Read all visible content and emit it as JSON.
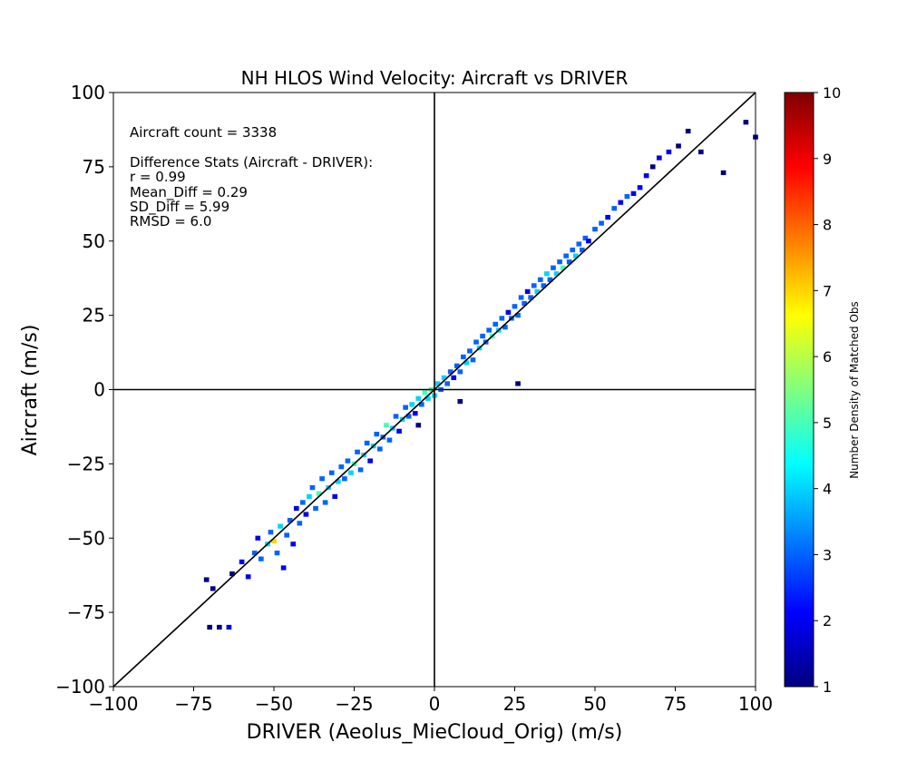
{
  "chart_data": {
    "type": "heatmap",
    "title": "NH HLOS Wind Velocity: Aircraft vs DRIVER",
    "xlabel": "DRIVER (Aeolus_MieCloud_Orig) (m/s)",
    "ylabel": "Aircraft (m/s)",
    "xlim": [
      -100,
      100
    ],
    "ylim": [
      -100,
      100
    ],
    "xticks": [
      -100,
      -75,
      -50,
      -25,
      0,
      25,
      50,
      75,
      100
    ],
    "yticks": [
      -100,
      -75,
      -50,
      -25,
      0,
      25,
      50,
      75,
      100
    ],
    "xtick_labels": [
      "−100",
      "−75",
      "−50",
      "−25",
      "0",
      "25",
      "50",
      "75",
      "100"
    ],
    "ytick_labels": [
      "−100",
      "−75",
      "−50",
      "−25",
      "0",
      "25",
      "50",
      "75",
      "100"
    ],
    "reference_lines": [
      "y = x",
      "x = 0",
      "y = 0"
    ],
    "colorbar": {
      "label": "Number Density of Matched Obs",
      "range": [
        1,
        10
      ],
      "ticks": [
        1,
        2,
        3,
        4,
        5,
        6,
        7,
        8,
        9,
        10
      ],
      "tick_labels": [
        "1",
        "2",
        "3",
        "4",
        "5",
        "6",
        "7",
        "8",
        "9",
        "10"
      ],
      "colormap": "jet"
    },
    "annotations": {
      "count": "Aircraft count = 3338",
      "stats_header": "Difference Stats (Aircraft - DRIVER):",
      "r": "r = 0.99",
      "mean_diff": "Mean_Diff = 0.29",
      "sd_diff": "SD_Diff = 5.99",
      "rmsd": "RMSD = 6.0"
    },
    "summary": {
      "count": 3338,
      "r": 0.99,
      "mean_diff": 0.29,
      "sd_diff": 5.99,
      "rmsd": 6.0
    },
    "colors": {
      "reference_line": "#000000",
      "jet": [
        "#00007f",
        "#0000ff",
        "#007fff",
        "#00ffff",
        "#7fff7f",
        "#ffff00",
        "#ff7f00",
        "#ff0000",
        "#7f0000"
      ]
    },
    "density_points": [
      {
        "x": -70,
        "y": -80,
        "d": 1
      },
      {
        "x": -67,
        "y": -80,
        "d": 1
      },
      {
        "x": -64,
        "y": -80,
        "d": 2
      },
      {
        "x": -71,
        "y": -64,
        "d": 1
      },
      {
        "x": -69,
        "y": -67,
        "d": 1
      },
      {
        "x": -63,
        "y": -62,
        "d": 1
      },
      {
        "x": -60,
        "y": -58,
        "d": 2
      },
      {
        "x": -58,
        "y": -63,
        "d": 2
      },
      {
        "x": -56,
        "y": -55,
        "d": 3
      },
      {
        "x": -55,
        "y": -50,
        "d": 2
      },
      {
        "x": -54,
        "y": -57,
        "d": 3
      },
      {
        "x": -52,
        "y": -52,
        "d": 4
      },
      {
        "x": -51,
        "y": -48,
        "d": 3
      },
      {
        "x": -50,
        "y": -51,
        "d": 7
      },
      {
        "x": -49,
        "y": -55,
        "d": 3
      },
      {
        "x": -48,
        "y": -46,
        "d": 4
      },
      {
        "x": -47,
        "y": -60,
        "d": 2
      },
      {
        "x": -46,
        "y": -49,
        "d": 3
      },
      {
        "x": -45,
        "y": -44,
        "d": 3
      },
      {
        "x": -44,
        "y": -52,
        "d": 2
      },
      {
        "x": -43,
        "y": -40,
        "d": 2
      },
      {
        "x": -42,
        "y": -45,
        "d": 3
      },
      {
        "x": -41,
        "y": -38,
        "d": 3
      },
      {
        "x": -40,
        "y": -42,
        "d": 2
      },
      {
        "x": -39,
        "y": -36,
        "d": 4
      },
      {
        "x": -38,
        "y": -33,
        "d": 3
      },
      {
        "x": -37,
        "y": -40,
        "d": 3
      },
      {
        "x": -36,
        "y": -35,
        "d": 5
      },
      {
        "x": -35,
        "y": -30,
        "d": 3
      },
      {
        "x": -34,
        "y": -38,
        "d": 3
      },
      {
        "x": -33,
        "y": -33,
        "d": 4
      },
      {
        "x": -32,
        "y": -28,
        "d": 3
      },
      {
        "x": -31,
        "y": -36,
        "d": 2
      },
      {
        "x": -30,
        "y": -31,
        "d": 4
      },
      {
        "x": -29,
        "y": -26,
        "d": 3
      },
      {
        "x": -28,
        "y": -30,
        "d": 3
      },
      {
        "x": -27,
        "y": -24,
        "d": 3
      },
      {
        "x": -26,
        "y": -28,
        "d": 4
      },
      {
        "x": -25,
        "y": -25,
        "d": 5
      },
      {
        "x": -24,
        "y": -21,
        "d": 3
      },
      {
        "x": -23,
        "y": -27,
        "d": 3
      },
      {
        "x": -22,
        "y": -22,
        "d": 4
      },
      {
        "x": -21,
        "y": -18,
        "d": 3
      },
      {
        "x": -20,
        "y": -24,
        "d": 2
      },
      {
        "x": -19,
        "y": -19,
        "d": 4
      },
      {
        "x": -18,
        "y": -15,
        "d": 3
      },
      {
        "x": -17,
        "y": -20,
        "d": 3
      },
      {
        "x": -16,
        "y": -16,
        "d": 3
      },
      {
        "x": -15,
        "y": -12,
        "d": 5
      },
      {
        "x": -14,
        "y": -17,
        "d": 3
      },
      {
        "x": -13,
        "y": -13,
        "d": 4
      },
      {
        "x": -12,
        "y": -9,
        "d": 3
      },
      {
        "x": -11,
        "y": -14,
        "d": 2
      },
      {
        "x": -10,
        "y": -10,
        "d": 4
      },
      {
        "x": -9,
        "y": -6,
        "d": 3
      },
      {
        "x": -8,
        "y": -9,
        "d": 3
      },
      {
        "x": -7,
        "y": -5,
        "d": 4
      },
      {
        "x": -6,
        "y": -8,
        "d": 2
      },
      {
        "x": -5,
        "y": -3,
        "d": 4
      },
      {
        "x": -4,
        "y": -5,
        "d": 3
      },
      {
        "x": -3,
        "y": -1,
        "d": 5
      },
      {
        "x": -2,
        "y": -3,
        "d": 4
      },
      {
        "x": -1,
        "y": 0,
        "d": 5
      },
      {
        "x": 0,
        "y": -2,
        "d": 4
      },
      {
        "x": 1,
        "y": 2,
        "d": 4
      },
      {
        "x": 2,
        "y": 0,
        "d": 3
      },
      {
        "x": 3,
        "y": 4,
        "d": 4
      },
      {
        "x": 4,
        "y": 2,
        "d": 3
      },
      {
        "x": 5,
        "y": 6,
        "d": 3
      },
      {
        "x": 6,
        "y": 4,
        "d": 2
      },
      {
        "x": 7,
        "y": 8,
        "d": 3
      },
      {
        "x": 8,
        "y": 6,
        "d": 3
      },
      {
        "x": 9,
        "y": 11,
        "d": 3
      },
      {
        "x": 10,
        "y": 9,
        "d": 4
      },
      {
        "x": 11,
        "y": 13,
        "d": 3
      },
      {
        "x": 12,
        "y": 10,
        "d": 3
      },
      {
        "x": 13,
        "y": 16,
        "d": 3
      },
      {
        "x": 14,
        "y": 14,
        "d": 4
      },
      {
        "x": 15,
        "y": 18,
        "d": 3
      },
      {
        "x": 16,
        "y": 16,
        "d": 3
      },
      {
        "x": 17,
        "y": 20,
        "d": 3
      },
      {
        "x": 18,
        "y": 18,
        "d": 5
      },
      {
        "x": 19,
        "y": 22,
        "d": 3
      },
      {
        "x": 20,
        "y": 20,
        "d": 4
      },
      {
        "x": 21,
        "y": 24,
        "d": 3
      },
      {
        "x": 22,
        "y": 21,
        "d": 3
      },
      {
        "x": 23,
        "y": 26,
        "d": 2
      },
      {
        "x": 24,
        "y": 24,
        "d": 3
      },
      {
        "x": 25,
        "y": 28,
        "d": 3
      },
      {
        "x": 26,
        "y": 25,
        "d": 3
      },
      {
        "x": 27,
        "y": 31,
        "d": 3
      },
      {
        "x": 28,
        "y": 29,
        "d": 3
      },
      {
        "x": 29,
        "y": 33,
        "d": 2
      },
      {
        "x": 30,
        "y": 31,
        "d": 3
      },
      {
        "x": 31,
        "y": 35,
        "d": 3
      },
      {
        "x": 32,
        "y": 33,
        "d": 4
      },
      {
        "x": 33,
        "y": 37,
        "d": 3
      },
      {
        "x": 34,
        "y": 35,
        "d": 3
      },
      {
        "x": 35,
        "y": 39,
        "d": 4
      },
      {
        "x": 36,
        "y": 37,
        "d": 3
      },
      {
        "x": 37,
        "y": 41,
        "d": 3
      },
      {
        "x": 38,
        "y": 39,
        "d": 4
      },
      {
        "x": 39,
        "y": 43,
        "d": 3
      },
      {
        "x": 40,
        "y": 41,
        "d": 5
      },
      {
        "x": 41,
        "y": 45,
        "d": 3
      },
      {
        "x": 42,
        "y": 43,
        "d": 3
      },
      {
        "x": 43,
        "y": 47,
        "d": 3
      },
      {
        "x": 44,
        "y": 45,
        "d": 4
      },
      {
        "x": 45,
        "y": 49,
        "d": 3
      },
      {
        "x": 46,
        "y": 47,
        "d": 3
      },
      {
        "x": 47,
        "y": 51,
        "d": 3
      },
      {
        "x": 48,
        "y": 50,
        "d": 2
      },
      {
        "x": 50,
        "y": 54,
        "d": 3
      },
      {
        "x": 52,
        "y": 56,
        "d": 3
      },
      {
        "x": 54,
        "y": 58,
        "d": 2
      },
      {
        "x": 56,
        "y": 61,
        "d": 3
      },
      {
        "x": 58,
        "y": 63,
        "d": 2
      },
      {
        "x": 60,
        "y": 65,
        "d": 3
      },
      {
        "x": 62,
        "y": 66,
        "d": 2
      },
      {
        "x": 64,
        "y": 68,
        "d": 2
      },
      {
        "x": 66,
        "y": 72,
        "d": 2
      },
      {
        "x": 68,
        "y": 75,
        "d": 1
      },
      {
        "x": 70,
        "y": 78,
        "d": 2
      },
      {
        "x": 73,
        "y": 80,
        "d": 2
      },
      {
        "x": 76,
        "y": 82,
        "d": 1
      },
      {
        "x": 79,
        "y": 87,
        "d": 1
      },
      {
        "x": 83,
        "y": 80,
        "d": 1
      },
      {
        "x": 90,
        "y": 73,
        "d": 1
      },
      {
        "x": 97,
        "y": 90,
        "d": 1
      },
      {
        "x": 100,
        "y": 85,
        "d": 1
      },
      {
        "x": 26,
        "y": 2,
        "d": 1
      },
      {
        "x": -5,
        "y": -12,
        "d": 1
      },
      {
        "x": 8,
        "y": -4,
        "d": 1
      }
    ]
  }
}
